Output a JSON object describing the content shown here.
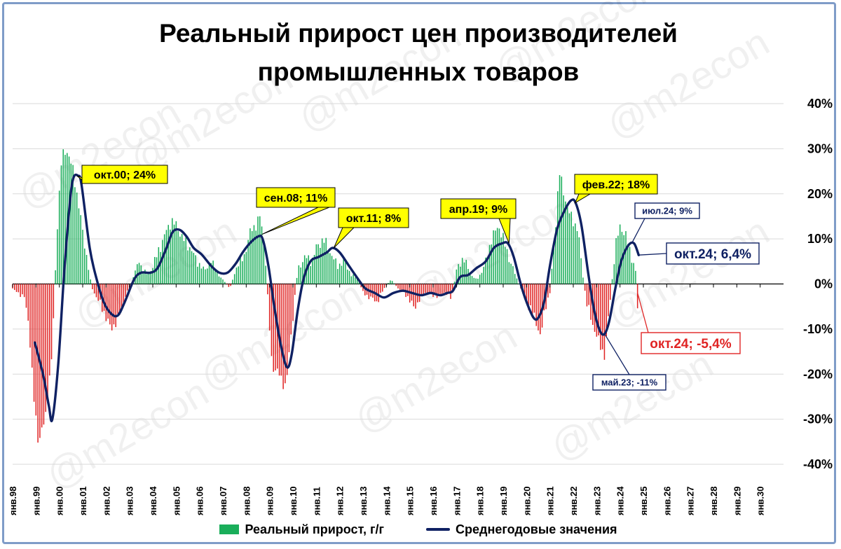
{
  "title_line1": "Реальный прирост цен производителей",
  "title_line2": "промышленных товаров",
  "watermark": "@m2econ",
  "colors": {
    "positive": "#1aae5a",
    "negative": "#e02424",
    "line": "#0f2163",
    "callout_yellow": "#ffff00",
    "grid": "#d9d9d9"
  },
  "legend": {
    "bars": "Реальный прирост, г/г",
    "line": "Среднегодовые значения"
  },
  "chart_data": {
    "type": "bar+line",
    "ylim": [
      -40,
      40
    ],
    "yticks": [
      "40%",
      "30%",
      "20%",
      "10%",
      "0%",
      "-10%",
      "-20%",
      "-30%",
      "-40%"
    ],
    "xlim": [
      1998.0,
      2031.0
    ],
    "xtick_labels": [
      "янв.98",
      "янв.99",
      "янв.00",
      "янв.01",
      "янв.02",
      "янв.03",
      "янв.04",
      "янв.05",
      "янв.06",
      "янв.07",
      "янв.08",
      "янв.09",
      "янв.10",
      "янв.11",
      "янв.12",
      "янв.13",
      "янв.14",
      "янв.15",
      "янв.16",
      "янв.17",
      "янв.18",
      "янв.19",
      "янв.20",
      "янв.21",
      "янв.22",
      "янв.23",
      "янв.24",
      "янв.25",
      "янв.26",
      "янв.27",
      "янв.28",
      "янв.29",
      "янв.30"
    ],
    "bars_anchors": [
      [
        1998.0,
        -1
      ],
      [
        1998.5,
        -3
      ],
      [
        1998.7,
        -9
      ],
      [
        1998.9,
        -25
      ],
      [
        1999.1,
        -35
      ],
      [
        1999.4,
        -30
      ],
      [
        1999.7,
        -15
      ],
      [
        1999.9,
        12
      ],
      [
        2000.1,
        28
      ],
      [
        2000.3,
        30
      ],
      [
        2000.6,
        25
      ],
      [
        2000.9,
        15
      ],
      [
        2001.2,
        5
      ],
      [
        2001.4,
        -1
      ],
      [
        2001.6,
        -3
      ],
      [
        2001.9,
        -6
      ],
      [
        2002.2,
        -10
      ],
      [
        2002.5,
        -8
      ],
      [
        2002.8,
        -3
      ],
      [
        2003.0,
        -1
      ],
      [
        2003.2,
        2
      ],
      [
        2003.4,
        5
      ],
      [
        2003.6,
        3
      ],
      [
        2003.8,
        2
      ],
      [
        2004.0,
        4
      ],
      [
        2004.3,
        8
      ],
      [
        2004.6,
        12
      ],
      [
        2004.8,
        14
      ],
      [
        2005.0,
        13
      ],
      [
        2005.3,
        10
      ],
      [
        2005.6,
        8
      ],
      [
        2005.9,
        5
      ],
      [
        2006.2,
        3
      ],
      [
        2006.5,
        5
      ],
      [
        2006.8,
        2
      ],
      [
        2007.0,
        1
      ],
      [
        2007.3,
        -1
      ],
      [
        2007.6,
        4
      ],
      [
        2007.9,
        6
      ],
      [
        2008.2,
        12
      ],
      [
        2008.4,
        13
      ],
      [
        2008.6,
        15
      ],
      [
        2008.8,
        8
      ],
      [
        2008.95,
        -6
      ],
      [
        2009.1,
        -18
      ],
      [
        2009.4,
        -20
      ],
      [
        2009.7,
        -23
      ],
      [
        2009.9,
        -12
      ],
      [
        2010.2,
        3
      ],
      [
        2010.5,
        6
      ],
      [
        2010.8,
        5
      ],
      [
        2011.0,
        8
      ],
      [
        2011.3,
        10
      ],
      [
        2011.6,
        7
      ],
      [
        2011.9,
        4
      ],
      [
        2012.2,
        5
      ],
      [
        2012.5,
        2
      ],
      [
        2012.8,
        1
      ],
      [
        2013.0,
        -2
      ],
      [
        2013.3,
        -3
      ],
      [
        2013.6,
        -4
      ],
      [
        2013.9,
        -1
      ],
      [
        2014.2,
        1
      ],
      [
        2014.5,
        -1
      ],
      [
        2014.8,
        -2
      ],
      [
        2015.0,
        -4
      ],
      [
        2015.3,
        -5
      ],
      [
        2015.6,
        -2
      ],
      [
        2015.9,
        -2
      ],
      [
        2016.2,
        -3
      ],
      [
        2016.5,
        -2
      ],
      [
        2016.8,
        -3
      ],
      [
        2017.0,
        3
      ],
      [
        2017.3,
        6
      ],
      [
        2017.6,
        2
      ],
      [
        2017.9,
        1
      ],
      [
        2018.2,
        4
      ],
      [
        2018.5,
        10
      ],
      [
        2018.8,
        13
      ],
      [
        2019.0,
        10
      ],
      [
        2019.3,
        5
      ],
      [
        2019.6,
        1
      ],
      [
        2019.9,
        -3
      ],
      [
        2020.2,
        -6
      ],
      [
        2020.4,
        -8
      ],
      [
        2020.6,
        -12
      ],
      [
        2020.8,
        -5
      ],
      [
        2021.0,
        -2
      ],
      [
        2021.2,
        10
      ],
      [
        2021.4,
        25
      ],
      [
        2021.6,
        20
      ],
      [
        2021.8,
        16
      ],
      [
        2022.0,
        14
      ],
      [
        2022.2,
        12
      ],
      [
        2022.4,
        2
      ],
      [
        2022.6,
        -5
      ],
      [
        2022.9,
        -10
      ],
      [
        2023.1,
        -13
      ],
      [
        2023.35,
        -16
      ],
      [
        2023.55,
        -5
      ],
      [
        2023.8,
        8
      ],
      [
        2024.0,
        13
      ],
      [
        2024.3,
        10
      ],
      [
        2024.5,
        6
      ],
      [
        2024.7,
        2
      ],
      [
        2024.75,
        -5.4
      ]
    ],
    "line_points": [
      [
        1998.95,
        -13
      ],
      [
        1999.3,
        -20
      ],
      [
        1999.55,
        -27
      ],
      [
        1999.7,
        -30
      ],
      [
        1999.95,
        -18
      ],
      [
        2000.2,
        2
      ],
      [
        2000.45,
        18
      ],
      [
        2000.6,
        23.5
      ],
      [
        2000.8,
        24
      ],
      [
        2000.95,
        22
      ],
      [
        2001.3,
        8
      ],
      [
        2001.6,
        1
      ],
      [
        2001.9,
        -4
      ],
      [
        2002.2,
        -6.5
      ],
      [
        2002.5,
        -7
      ],
      [
        2002.8,
        -4
      ],
      [
        2003.2,
        1
      ],
      [
        2003.5,
        2.5
      ],
      [
        2003.9,
        2.5
      ],
      [
        2004.2,
        3.5
      ],
      [
        2004.55,
        7.5
      ],
      [
        2004.85,
        11.5
      ],
      [
        2005.15,
        12
      ],
      [
        2005.45,
        10.5
      ],
      [
        2005.75,
        8
      ],
      [
        2006.1,
        6.5
      ],
      [
        2006.5,
        4
      ],
      [
        2006.85,
        2.5
      ],
      [
        2007.2,
        2.5
      ],
      [
        2007.55,
        4.5
      ],
      [
        2007.85,
        7
      ],
      [
        2008.15,
        9
      ],
      [
        2008.5,
        10.5
      ],
      [
        2008.7,
        10
      ],
      [
        2008.95,
        4
      ],
      [
        2009.2,
        -5
      ],
      [
        2009.5,
        -14
      ],
      [
        2009.75,
        -18.5
      ],
      [
        2009.95,
        -15.5
      ],
      [
        2010.2,
        -6
      ],
      [
        2010.45,
        1
      ],
      [
        2010.75,
        5
      ],
      [
        2011.1,
        6
      ],
      [
        2011.45,
        7
      ],
      [
        2011.7,
        8
      ],
      [
        2012.0,
        7
      ],
      [
        2012.4,
        4
      ],
      [
        2012.8,
        1
      ],
      [
        2013.1,
        -1
      ],
      [
        2013.5,
        -2
      ],
      [
        2013.9,
        -3
      ],
      [
        2014.3,
        -2
      ],
      [
        2014.7,
        -1.5
      ],
      [
        2015.1,
        -2
      ],
      [
        2015.5,
        -2.5
      ],
      [
        2015.9,
        -2
      ],
      [
        2016.3,
        -2.5
      ],
      [
        2016.6,
        -2
      ],
      [
        2016.85,
        -1.5
      ],
      [
        2017.15,
        1.5
      ],
      [
        2017.5,
        2
      ],
      [
        2017.85,
        3.5
      ],
      [
        2018.25,
        5
      ],
      [
        2018.6,
        8
      ],
      [
        2018.95,
        9
      ],
      [
        2019.2,
        9
      ],
      [
        2019.45,
        6
      ],
      [
        2019.75,
        0
      ],
      [
        2020.0,
        -4
      ],
      [
        2020.3,
        -7.5
      ],
      [
        2020.5,
        -7.5
      ],
      [
        2020.75,
        -4
      ],
      [
        2021.0,
        4
      ],
      [
        2021.3,
        12
      ],
      [
        2021.6,
        16
      ],
      [
        2021.9,
        18.5
      ],
      [
        2022.1,
        18
      ],
      [
        2022.35,
        13
      ],
      [
        2022.65,
        2
      ],
      [
        2022.9,
        -6
      ],
      [
        2023.15,
        -10.5
      ],
      [
        2023.35,
        -11
      ],
      [
        2023.55,
        -8
      ],
      [
        2023.8,
        -1
      ],
      [
        2024.05,
        5
      ],
      [
        2024.35,
        8.5
      ],
      [
        2024.6,
        9
      ],
      [
        2024.8,
        6.4
      ]
    ],
    "callouts": [
      {
        "text": "окт.00; 24%",
        "x": 2000.75,
        "y": 24,
        "style": "yellow"
      },
      {
        "text": "сен.08; 11%",
        "x": 2008.67,
        "y": 11,
        "style": "yellow"
      },
      {
        "text": "окт.11; 8%",
        "x": 2011.75,
        "y": 8,
        "style": "yellow"
      },
      {
        "text": "апр.19; 9%",
        "x": 2019.25,
        "y": 9,
        "style": "yellow"
      },
      {
        "text": "фев.22; 18%",
        "x": 2022.08,
        "y": 18,
        "style": "yellow"
      },
      {
        "text": "июл.24; 9%",
        "x": 2024.5,
        "y": 9,
        "style": "small-navy"
      },
      {
        "text": "окт.24; 6,4%",
        "x": 2024.75,
        "y": 6.4,
        "style": "navy"
      },
      {
        "text": "окт.24; -5,4%",
        "x": 2024.75,
        "y": -2,
        "style": "red"
      },
      {
        "text": "май.23; -11%",
        "x": 2023.33,
        "y": -11,
        "style": "small-navy"
      }
    ]
  }
}
